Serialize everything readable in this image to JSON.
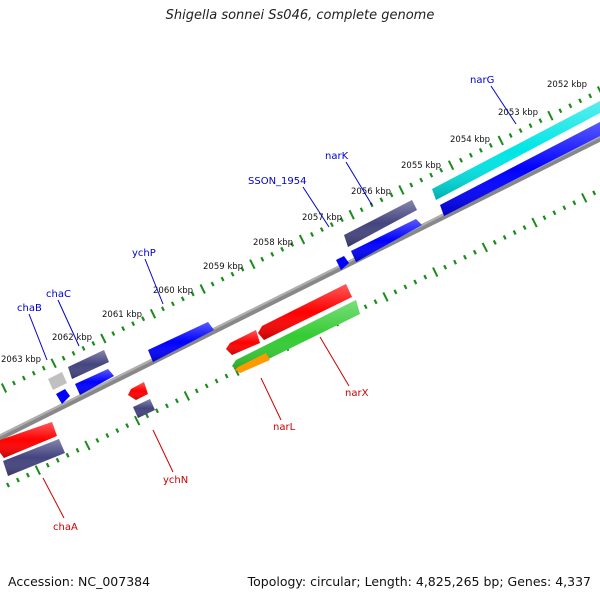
{
  "title": "Shigella sonnei Ss046, complete genome",
  "footer": {
    "accession": "Accession: NC_007384",
    "topology": "Topology: circular; Length: 4,825,265 bp; Genes: 4,337"
  },
  "kbp_labels": [
    "2052 kbp",
    "2053 kbp",
    "2054 kbp",
    "2055 kbp",
    "2056 kbp",
    "2057 kbp",
    "2058 kbp",
    "2059 kbp",
    "2060 kbp",
    "2061 kbp",
    "2062 kbp",
    "2063 kbp"
  ],
  "genes_forward": [
    "narG",
    "narK",
    "SSON_1954",
    "ychP",
    "chaC",
    "chaB"
  ],
  "genes_reverse": [
    "narX",
    "narL",
    "ychN",
    "chaA"
  ],
  "colors": {
    "blue": "#0000ff",
    "navy": "#44447f",
    "cyan": "#00e0e0",
    "red": "#ff0000",
    "green": "#33cc33",
    "orange": "#ff9900",
    "grey": "#c0c0c0",
    "tick_green": "#1a8c1a",
    "backbone": "#888888"
  }
}
